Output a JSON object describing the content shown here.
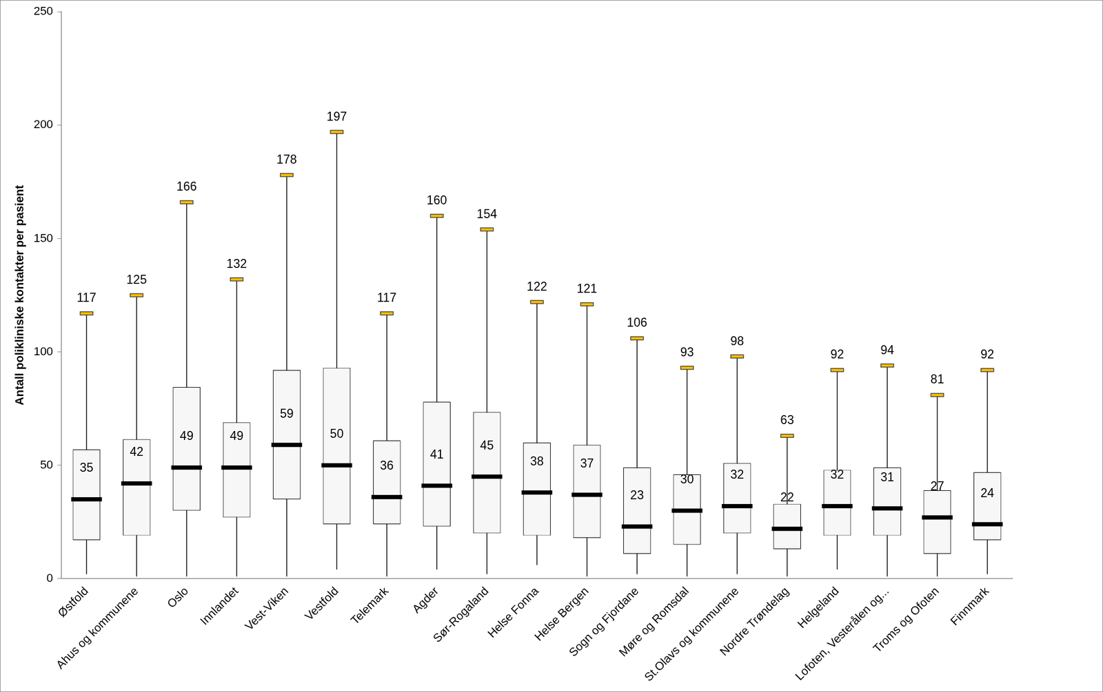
{
  "chart_data": {
    "type": "boxplot",
    "y_label": "Antall polikliniske kontakter per pasient",
    "categories": [
      "Østfold",
      "Ahus og kommunene",
      "Oslo",
      "Innlandet",
      "Vest-Viken",
      "Vestfold",
      "Telemark",
      "Agder",
      "Sør-Rogaland",
      "Helse Fonna",
      "Helse Bergen",
      "Sogn og Fjordane",
      "Møre og Romsdal",
      "St.Olavs og kommunene",
      "Nordre Trøndelag",
      "Helgeland",
      "Lofoten, Vesterålen og...",
      "Troms og Ofoten",
      "Finnmark"
    ],
    "min": [
      2,
      1,
      1,
      1,
      1,
      4,
      1,
      4,
      2,
      6,
      1,
      2,
      1,
      2,
      1,
      4,
      1,
      1,
      2
    ],
    "q1": [
      17,
      19,
      30,
      27,
      35,
      24,
      24,
      23,
      20,
      19,
      18,
      11,
      15,
      20,
      13,
      19,
      19,
      11,
      17
    ],
    "median": [
      35,
      42,
      49,
      49,
      59,
      50,
      36,
      41,
      45,
      38,
      37,
      23,
      30,
      32,
      22,
      32,
      31,
      27,
      24
    ],
    "q3": [
      57,
      61.5,
      84.5,
      69,
      92,
      93,
      61,
      78,
      73.5,
      60,
      59,
      49,
      46,
      51,
      33,
      48,
      49,
      39,
      47
    ],
    "max": [
      117,
      125,
      166,
      132,
      178,
      197,
      117,
      160,
      154,
      122,
      121,
      106,
      93,
      98,
      63,
      92,
      94,
      81,
      92
    ],
    "color": "#f7f7f7",
    "ylim": [
      0,
      250
    ],
    "yticks": [
      0,
      50,
      100,
      150,
      200,
      250
    ],
    "grid": false,
    "data_labels": true
  }
}
